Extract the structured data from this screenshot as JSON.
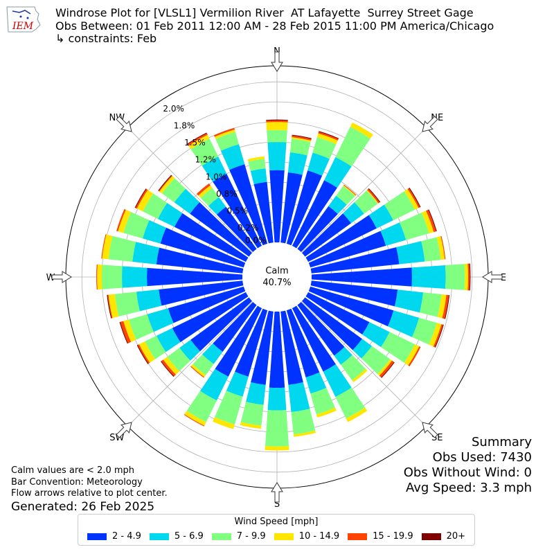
{
  "header": {
    "line1": "Windrose Plot for [VLSL1] Vermilion River  AT Lafayette  Surrey Street Gage",
    "line2": "Obs Between: 01 Feb 2011 12:00 AM - 28 Feb 2015 11:00 PM America/Chicago",
    "line3": "↳ constraints: Feb"
  },
  "logo": {
    "text": "IEM",
    "color": "#cc0000"
  },
  "calm": {
    "label": "Calm",
    "value": "40.7%"
  },
  "summary": {
    "title": "Summary",
    "obs_used": "Obs Used: 7430",
    "obs_without_wind": "Obs Without Wind: 0",
    "avg_speed": "Avg Speed: 3.3 mph"
  },
  "notes": {
    "calm_note": "Calm values are < 2.0 mph",
    "bar_convention": "Bar Convention: Meteorology",
    "flow_arrows": "Flow arrows relative to plot center.",
    "generated": "Generated: 26 Feb 2025"
  },
  "legend": {
    "title": "Wind Speed [mph]",
    "items": [
      {
        "label": "2 - 4.9",
        "color": "#0033ff"
      },
      {
        "label": "5 - 6.9",
        "color": "#00d8f0"
      },
      {
        "label": "7 - 9.9",
        "color": "#80ff80"
      },
      {
        "label": "10 - 14.9",
        "color": "#ffe600"
      },
      {
        "label": "15 - 19.9",
        "color": "#ff4400"
      },
      {
        "label": "20+",
        "color": "#800000"
      }
    ]
  },
  "chart_data": {
    "type": "windrose",
    "title": "Windrose Plot for [VLSL1] Vermilion River  AT Lafayette  Surrey Street Gage",
    "radial_unit": "%",
    "radial_range": [
      0,
      2.2
    ],
    "radial_ticks": [
      "0.0%",
      "0.2%",
      "0.5%",
      "0.8%",
      "1.0%",
      "1.2%",
      "1.5%",
      "1.8%",
      "2.0%"
    ],
    "radial_tick_values": [
      0,
      0.25,
      0.5,
      0.75,
      1.0,
      1.25,
      1.5,
      1.75,
      2.0
    ],
    "compass_labels": [
      "N",
      "NE",
      "E",
      "SE",
      "S",
      "SW",
      "W",
      "NW"
    ],
    "direction_angles": [
      0,
      10,
      20,
      30,
      40,
      50,
      60,
      70,
      80,
      90,
      100,
      110,
      120,
      130,
      140,
      150,
      160,
      170,
      180,
      190,
      200,
      210,
      220,
      230,
      240,
      250,
      260,
      270,
      280,
      290,
      300,
      310,
      320,
      330,
      340,
      350
    ],
    "bins": [
      "2 - 4.9",
      "5 - 6.9",
      "7 - 9.9",
      "10 - 14.9",
      "15 - 19.9",
      "20+"
    ],
    "cumulative_percent": [
      [
        0.9,
        1.25,
        1.4,
        1.5,
        1.52,
        1.53
      ],
      [
        0.88,
        1.13,
        1.3,
        1.32,
        1.34,
        1.35
      ],
      [
        0.95,
        1.18,
        1.38,
        1.43,
        1.45,
        1.46
      ],
      [
        0.91,
        1.23,
        1.65,
        1.71,
        1.71,
        1.71
      ],
      [
        0.66,
        0.82,
        0.97,
        0.98,
        0.99,
        0.99
      ],
      [
        0.71,
        0.91,
        1.12,
        1.13,
        1.15,
        1.16
      ],
      [
        0.95,
        1.18,
        1.48,
        1.53,
        1.55,
        1.56
      ],
      [
        0.98,
        1.24,
        1.54,
        1.6,
        1.63,
        1.64
      ],
      [
        1.1,
        1.42,
        1.62,
        1.67,
        1.68,
        1.68
      ],
      [
        1.25,
        1.67,
        1.91,
        1.95,
        1.97,
        1.98
      ],
      [
        1.08,
        1.4,
        1.63,
        1.69,
        1.72,
        1.73
      ],
      [
        1.08,
        1.41,
        1.64,
        1.7,
        1.72,
        1.73
      ],
      [
        0.85,
        1.13,
        1.48,
        1.54,
        1.56,
        1.56
      ],
      [
        0.88,
        1.03,
        1.31,
        1.34,
        1.37,
        1.38
      ],
      [
        0.78,
        0.92,
        1.16,
        1.19,
        1.19,
        1.19
      ],
      [
        0.88,
        1.23,
        1.53,
        1.58,
        1.58,
        1.58
      ],
      [
        0.87,
        1.08,
        1.35,
        1.39,
        1.39,
        1.39
      ],
      [
        0.92,
        1.26,
        1.54,
        1.57,
        1.57,
        1.57
      ],
      [
        0.95,
        1.23,
        1.68,
        1.73,
        1.73,
        1.73
      ],
      [
        0.92,
        1.17,
        1.43,
        1.47,
        1.47,
        1.47
      ],
      [
        0.86,
        1.12,
        1.48,
        1.54,
        1.54,
        1.54
      ],
      [
        0.95,
        1.28,
        1.58,
        1.63,
        1.64,
        1.64
      ],
      [
        0.72,
        0.91,
        1.08,
        1.11,
        1.12,
        1.12
      ],
      [
        0.9,
        1.07,
        1.26,
        1.32,
        1.35,
        1.36
      ],
      [
        1.02,
        1.24,
        1.4,
        1.48,
        1.5,
        1.51
      ],
      [
        0.98,
        1.25,
        1.49,
        1.56,
        1.6,
        1.61
      ],
      [
        1.05,
        1.33,
        1.6,
        1.68,
        1.69,
        1.7
      ],
      [
        1.19,
        1.5,
        1.75,
        1.81,
        1.82,
        1.82
      ],
      [
        1.08,
        1.38,
        1.68,
        1.76,
        1.77,
        1.77
      ],
      [
        1.08,
        1.31,
        1.56,
        1.63,
        1.65,
        1.65
      ],
      [
        0.99,
        1.22,
        1.43,
        1.51,
        1.53,
        1.54
      ],
      [
        0.91,
        1.15,
        1.34,
        1.38,
        1.39,
        1.4
      ],
      [
        0.65,
        0.8,
        0.94,
        0.98,
        1.01,
        1.01
      ],
      [
        1.0,
        1.24,
        1.49,
        1.54,
        1.56,
        1.57
      ],
      [
        1.03,
        1.29,
        1.45,
        1.48,
        1.5,
        1.5
      ],
      [
        0.76,
        0.93,
        1.05,
        1.08,
        1.08,
        1.08
      ]
    ]
  }
}
